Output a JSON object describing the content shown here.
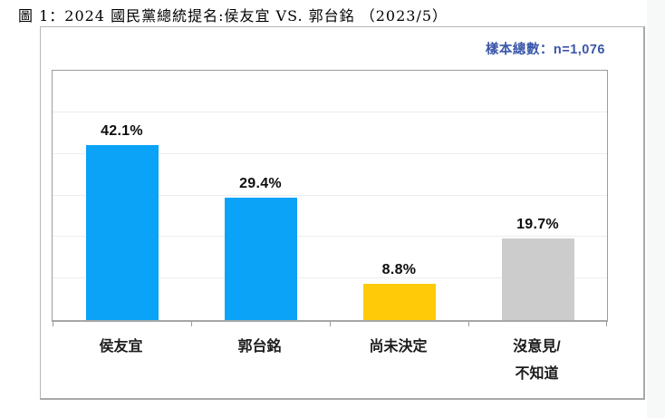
{
  "figure": {
    "title": "圖 1：2024 國民黨總統提名:侯友宜 VS. 郭台銘 （2023/5）"
  },
  "panel": {
    "sample_label": "樣本總數：n=1,076"
  },
  "colors": {
    "bar_blue": "#0aa3f7",
    "bar_yellow": "#ffca08",
    "bar_gray": "#cccccc",
    "sample_text_blue": "#3a56a9",
    "value_label_text": "#0d0d0d",
    "panel_border": "#b7b7b7",
    "plot_border": "#9c9c9c",
    "gridline": "#ededed"
  },
  "chart_data": {
    "type": "bar",
    "title": "2024 國民黨總統提名:侯友宜 VS. 郭台銘 (2023/5)",
    "subtitle": "樣本總數：n=1,076",
    "categories": [
      "侯友宜",
      "郭台銘",
      "尚未決定",
      "沒意見/不知道"
    ],
    "category_display": [
      [
        "侯友宜"
      ],
      [
        "郭台銘"
      ],
      [
        "尚未決定"
      ],
      [
        "沒意見/",
        "不知道"
      ]
    ],
    "values": [
      42.1,
      29.4,
      8.8,
      19.7
    ],
    "value_labels": [
      "42.1%",
      "29.4%",
      "8.8%",
      "19.7%"
    ],
    "unit": "%",
    "bar_colors": [
      "#0aa3f7",
      "#0aa3f7",
      "#ffca08",
      "#cccccc"
    ],
    "xlabel": "",
    "ylabel": "",
    "ylim": [
      0,
      60
    ],
    "gridline_step": 10,
    "grid": true,
    "legend": false,
    "y_axis_tick_labels_visible": false
  }
}
